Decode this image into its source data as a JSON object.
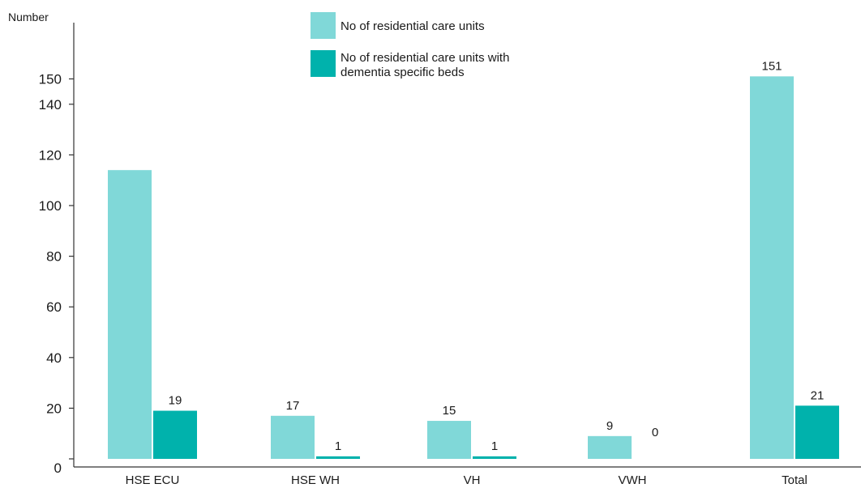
{
  "chart_data": {
    "type": "bar",
    "ylabel": "Number",
    "ylim": [
      0,
      160
    ],
    "yticks": [
      0,
      20,
      40,
      60,
      80,
      100,
      120,
      140,
      150
    ],
    "grid": false,
    "legend_position": "top-center",
    "categories": [
      "HSE ECU",
      "HSE WH",
      "VH",
      "VWH",
      "Total"
    ],
    "series": [
      {
        "name": "No of residential care units",
        "color": "#80d8d8",
        "values": [
          114,
          17,
          15,
          9,
          151
        ],
        "labels": [
          "",
          "17",
          "15",
          "9",
          "151"
        ]
      },
      {
        "name_lines": [
          "No of residential care units with",
          "dementia specific beds"
        ],
        "color": "#00b2ac",
        "values": [
          19,
          1,
          1,
          0,
          21
        ],
        "labels": [
          "19",
          "1",
          "1",
          "0",
          "21"
        ]
      }
    ]
  }
}
